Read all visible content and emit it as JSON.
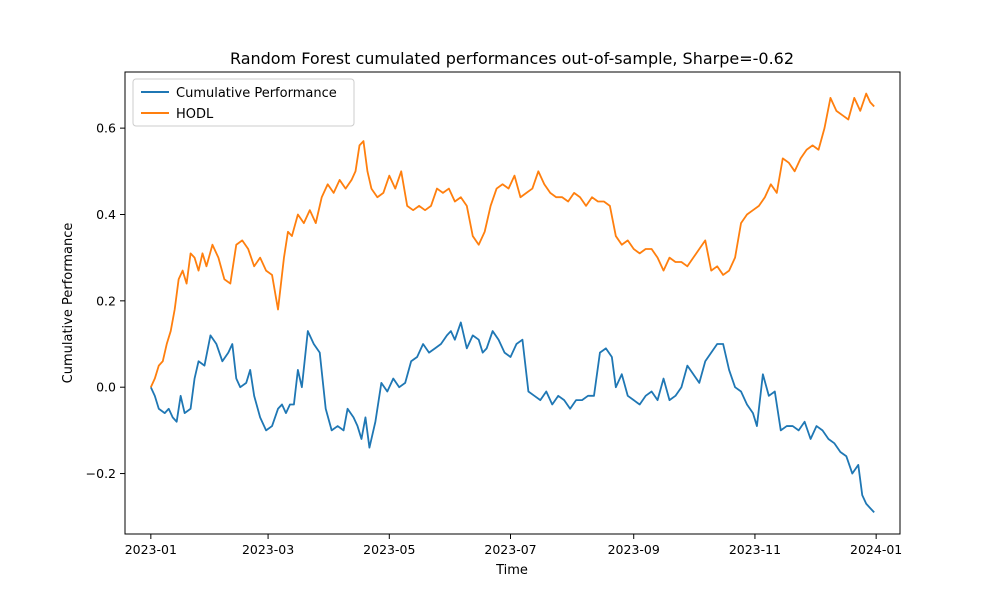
{
  "chart_data": {
    "type": "line",
    "title": "Random Forest cumulated performances out-of-sample, Sharpe=-0.62",
    "xlabel": "Time",
    "ylabel": "Cumulative Performance",
    "xlim": [
      "2022-12-19",
      "2024-01-13"
    ],
    "ylim": [
      -0.34,
      0.73
    ],
    "xticks": [
      {
        "date": "2023-01-01",
        "label": "2023-01"
      },
      {
        "date": "2023-03-01",
        "label": "2023-03"
      },
      {
        "date": "2023-05-01",
        "label": "2023-05"
      },
      {
        "date": "2023-07-01",
        "label": "2023-07"
      },
      {
        "date": "2023-09-01",
        "label": "2023-09"
      },
      {
        "date": "2023-11-01",
        "label": "2023-11"
      },
      {
        "date": "2024-01-01",
        "label": "2024-01"
      }
    ],
    "yticks": [
      {
        "value": -0.2,
        "label": "−0.2"
      },
      {
        "value": 0.0,
        "label": "0.0"
      },
      {
        "value": 0.2,
        "label": "0.2"
      },
      {
        "value": 0.4,
        "label": "0.4"
      },
      {
        "value": 0.6,
        "label": "0.6"
      }
    ],
    "grid": false,
    "legend_position": "top-left",
    "series": [
      {
        "name": "Cumulative Performance",
        "color": "#1f77b4",
        "x": [
          "2023-01-01",
          "2023-01-03",
          "2023-01-05",
          "2023-01-08",
          "2023-01-10",
          "2023-01-12",
          "2023-01-14",
          "2023-01-16",
          "2023-01-18",
          "2023-01-21",
          "2023-01-23",
          "2023-01-25",
          "2023-01-28",
          "2023-01-31",
          "2023-02-03",
          "2023-02-06",
          "2023-02-09",
          "2023-02-11",
          "2023-02-13",
          "2023-02-15",
          "2023-02-18",
          "2023-02-20",
          "2023-02-22",
          "2023-02-25",
          "2023-02-28",
          "2023-03-03",
          "2023-03-06",
          "2023-03-08",
          "2023-03-10",
          "2023-03-12",
          "2023-03-14",
          "2023-03-16",
          "2023-03-18",
          "2023-03-21",
          "2023-03-24",
          "2023-03-27",
          "2023-03-30",
          "2023-04-02",
          "2023-04-05",
          "2023-04-08",
          "2023-04-10",
          "2023-04-13",
          "2023-04-15",
          "2023-04-17",
          "2023-04-19",
          "2023-04-21",
          "2023-04-24",
          "2023-04-27",
          "2023-04-30",
          "2023-05-03",
          "2023-05-06",
          "2023-05-09",
          "2023-05-12",
          "2023-05-15",
          "2023-05-18",
          "2023-05-21",
          "2023-05-24",
          "2023-05-27",
          "2023-05-30",
          "2023-06-01",
          "2023-06-03",
          "2023-06-06",
          "2023-06-09",
          "2023-06-12",
          "2023-06-15",
          "2023-06-17",
          "2023-06-19",
          "2023-06-22",
          "2023-06-25",
          "2023-06-28",
          "2023-07-01",
          "2023-07-04",
          "2023-07-07",
          "2023-07-10",
          "2023-07-13",
          "2023-07-16",
          "2023-07-19",
          "2023-07-22",
          "2023-07-25",
          "2023-07-28",
          "2023-07-31",
          "2023-08-03",
          "2023-08-06",
          "2023-08-09",
          "2023-08-12",
          "2023-08-15",
          "2023-08-18",
          "2023-08-21",
          "2023-08-23",
          "2023-08-26",
          "2023-08-29",
          "2023-09-01",
          "2023-09-04",
          "2023-09-07",
          "2023-09-10",
          "2023-09-13",
          "2023-09-16",
          "2023-09-19",
          "2023-09-22",
          "2023-09-25",
          "2023-09-28",
          "2023-10-01",
          "2023-10-04",
          "2023-10-07",
          "2023-10-10",
          "2023-10-13",
          "2023-10-16",
          "2023-10-19",
          "2023-10-22",
          "2023-10-25",
          "2023-10-28",
          "2023-10-31",
          "2023-11-02",
          "2023-11-05",
          "2023-11-08",
          "2023-11-11",
          "2023-11-14",
          "2023-11-17",
          "2023-11-20",
          "2023-11-23",
          "2023-11-26",
          "2023-11-29",
          "2023-12-02",
          "2023-12-05",
          "2023-12-08",
          "2023-12-11",
          "2023-12-14",
          "2023-12-17",
          "2023-12-20",
          "2023-12-23",
          "2023-12-25",
          "2023-12-27",
          "2023-12-29",
          "2023-12-31"
        ],
        "y": [
          0.0,
          -0.02,
          -0.05,
          -0.06,
          -0.05,
          -0.07,
          -0.08,
          -0.02,
          -0.06,
          -0.05,
          0.02,
          0.06,
          0.05,
          0.12,
          0.1,
          0.06,
          0.08,
          0.1,
          0.02,
          0.0,
          0.01,
          0.04,
          -0.02,
          -0.07,
          -0.1,
          -0.09,
          -0.05,
          -0.04,
          -0.06,
          -0.04,
          -0.04,
          0.04,
          0.0,
          0.13,
          0.1,
          0.08,
          -0.05,
          -0.1,
          -0.09,
          -0.1,
          -0.05,
          -0.07,
          -0.09,
          -0.12,
          -0.07,
          -0.14,
          -0.08,
          0.01,
          -0.01,
          0.02,
          0.0,
          0.01,
          0.06,
          0.07,
          0.1,
          0.08,
          0.09,
          0.1,
          0.12,
          0.13,
          0.11,
          0.15,
          0.09,
          0.12,
          0.11,
          0.08,
          0.09,
          0.13,
          0.11,
          0.08,
          0.07,
          0.1,
          0.11,
          -0.01,
          -0.02,
          -0.03,
          -0.01,
          -0.04,
          -0.02,
          -0.03,
          -0.05,
          -0.03,
          -0.03,
          -0.02,
          -0.02,
          0.08,
          0.09,
          0.07,
          0.0,
          0.03,
          -0.02,
          -0.03,
          -0.04,
          -0.02,
          -0.01,
          -0.03,
          0.02,
          -0.03,
          -0.02,
          0.0,
          0.05,
          0.03,
          0.01,
          0.06,
          0.08,
          0.1,
          0.1,
          0.04,
          0.0,
          -0.01,
          -0.04,
          -0.06,
          -0.09,
          0.03,
          -0.02,
          -0.01,
          -0.1,
          -0.09,
          -0.09,
          -0.1,
          -0.08,
          -0.12,
          -0.09,
          -0.1,
          -0.12,
          -0.13,
          -0.15,
          -0.16,
          -0.2,
          -0.18,
          -0.25,
          -0.27,
          -0.28,
          -0.29
        ]
      },
      {
        "name": "HODL",
        "color": "#ff7f0e",
        "x": [
          "2023-01-01",
          "2023-01-03",
          "2023-01-05",
          "2023-01-07",
          "2023-01-09",
          "2023-01-11",
          "2023-01-13",
          "2023-01-15",
          "2023-01-17",
          "2023-01-19",
          "2023-01-21",
          "2023-01-23",
          "2023-01-25",
          "2023-01-27",
          "2023-01-29",
          "2023-02-01",
          "2023-02-04",
          "2023-02-07",
          "2023-02-10",
          "2023-02-13",
          "2023-02-16",
          "2023-02-19",
          "2023-02-22",
          "2023-02-25",
          "2023-02-28",
          "2023-03-03",
          "2023-03-06",
          "2023-03-09",
          "2023-03-11",
          "2023-03-13",
          "2023-03-16",
          "2023-03-19",
          "2023-03-22",
          "2023-03-25",
          "2023-03-28",
          "2023-03-31",
          "2023-04-03",
          "2023-04-06",
          "2023-04-09",
          "2023-04-12",
          "2023-04-14",
          "2023-04-16",
          "2023-04-18",
          "2023-04-20",
          "2023-04-22",
          "2023-04-25",
          "2023-04-28",
          "2023-05-01",
          "2023-05-04",
          "2023-05-07",
          "2023-05-10",
          "2023-05-13",
          "2023-05-16",
          "2023-05-19",
          "2023-05-22",
          "2023-05-25",
          "2023-05-28",
          "2023-05-31",
          "2023-06-03",
          "2023-06-06",
          "2023-06-09",
          "2023-06-12",
          "2023-06-15",
          "2023-06-18",
          "2023-06-21",
          "2023-06-24",
          "2023-06-27",
          "2023-06-30",
          "2023-07-03",
          "2023-07-06",
          "2023-07-09",
          "2023-07-12",
          "2023-07-15",
          "2023-07-18",
          "2023-07-21",
          "2023-07-24",
          "2023-07-27",
          "2023-07-30",
          "2023-08-02",
          "2023-08-05",
          "2023-08-08",
          "2023-08-11",
          "2023-08-14",
          "2023-08-17",
          "2023-08-20",
          "2023-08-23",
          "2023-08-26",
          "2023-08-29",
          "2023-09-01",
          "2023-09-04",
          "2023-09-07",
          "2023-09-10",
          "2023-09-13",
          "2023-09-16",
          "2023-09-19",
          "2023-09-22",
          "2023-09-25",
          "2023-09-28",
          "2023-10-01",
          "2023-10-04",
          "2023-10-07",
          "2023-10-10",
          "2023-10-13",
          "2023-10-16",
          "2023-10-19",
          "2023-10-22",
          "2023-10-25",
          "2023-10-28",
          "2023-10-31",
          "2023-11-03",
          "2023-11-06",
          "2023-11-09",
          "2023-11-12",
          "2023-11-15",
          "2023-11-18",
          "2023-11-21",
          "2023-11-24",
          "2023-11-27",
          "2023-11-30",
          "2023-12-03",
          "2023-12-06",
          "2023-12-09",
          "2023-12-12",
          "2023-12-15",
          "2023-12-18",
          "2023-12-21",
          "2023-12-24",
          "2023-12-27",
          "2023-12-29",
          "2023-12-31"
        ],
        "y": [
          0.0,
          0.02,
          0.05,
          0.06,
          0.1,
          0.13,
          0.18,
          0.25,
          0.27,
          0.24,
          0.31,
          0.3,
          0.27,
          0.31,
          0.28,
          0.33,
          0.3,
          0.25,
          0.24,
          0.33,
          0.34,
          0.32,
          0.28,
          0.3,
          0.27,
          0.26,
          0.18,
          0.3,
          0.36,
          0.35,
          0.4,
          0.38,
          0.41,
          0.38,
          0.44,
          0.47,
          0.45,
          0.48,
          0.46,
          0.48,
          0.5,
          0.56,
          0.57,
          0.5,
          0.46,
          0.44,
          0.45,
          0.49,
          0.46,
          0.5,
          0.42,
          0.41,
          0.42,
          0.41,
          0.42,
          0.46,
          0.45,
          0.46,
          0.43,
          0.44,
          0.42,
          0.35,
          0.33,
          0.36,
          0.42,
          0.46,
          0.47,
          0.46,
          0.49,
          0.44,
          0.45,
          0.46,
          0.5,
          0.47,
          0.45,
          0.44,
          0.44,
          0.43,
          0.45,
          0.44,
          0.42,
          0.44,
          0.43,
          0.43,
          0.42,
          0.35,
          0.33,
          0.34,
          0.32,
          0.31,
          0.32,
          0.32,
          0.3,
          0.27,
          0.3,
          0.29,
          0.29,
          0.28,
          0.3,
          0.32,
          0.34,
          0.27,
          0.28,
          0.26,
          0.27,
          0.3,
          0.38,
          0.4,
          0.41,
          0.42,
          0.44,
          0.47,
          0.45,
          0.53,
          0.52,
          0.5,
          0.53,
          0.55,
          0.56,
          0.55,
          0.6,
          0.67,
          0.64,
          0.63,
          0.62,
          0.67,
          0.64,
          0.68,
          0.66,
          0.65
        ]
      }
    ]
  }
}
